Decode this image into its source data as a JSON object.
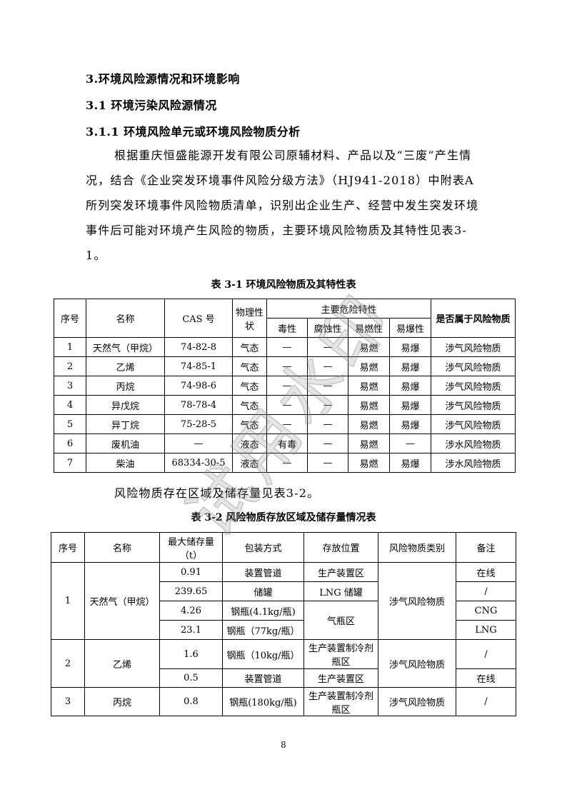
{
  "headings": [
    "3.环境风险源情况和环境影响",
    "3.1 环境污染风险源情况",
    "3.1.1 环境风险单元或环境风险物质分析"
  ],
  "paragraph1": "根据重庆恒盛能源开发有限公司原辅材料、产品以及“三废”产生情况，结合《企业突发环境事件风险分级方法》（HJ941-2018）中附表A所列突发环境事件风险物质清单，识别出企业生产、经营中发生突发环境事件后可能对环境产生风险的物质，主要环境风险物质及其特性见表3-1。",
  "table1": {
    "caption": "表 3-1 环境风险物质及其特性表",
    "headers": {
      "no": "序号",
      "name": "名称",
      "cas": "CAS 号",
      "state": "物理性状",
      "hazard": "主要危险特性",
      "tox": "毒性",
      "corr": "腐蚀性",
      "flam": "易燃性",
      "expl": "易爆性",
      "risk": "是否属于风险物质"
    },
    "rows": [
      [
        "1",
        "天然气（甲烷）",
        "74-82-8",
        "气态",
        "—",
        "—",
        "易燃",
        "易爆",
        "涉气风险物质"
      ],
      [
        "2",
        "乙烯",
        "74-85-1",
        "气态",
        "—",
        "—",
        "易燃",
        "易爆",
        "涉气风险物质"
      ],
      [
        "3",
        "丙烷",
        "74-98-6",
        "气态",
        "—",
        "—",
        "易燃",
        "易爆",
        "涉气风险物质"
      ],
      [
        "4",
        "异戊烷",
        "78-78-4",
        "气态",
        "—",
        "—",
        "易燃",
        "易爆",
        "涉气风险物质"
      ],
      [
        "5",
        "异丁烷",
        "75-28-5",
        "气态",
        "—",
        "—",
        "易燃",
        "易爆",
        "涉气风险物质"
      ],
      [
        "6",
        "废机油",
        "—",
        "液态",
        "有毒",
        "—",
        "易燃",
        "—",
        "涉水风险物质"
      ],
      [
        "7",
        "柴油",
        "68334-30-5",
        "液态",
        "—",
        "—",
        "易燃",
        "易爆",
        "涉水风险物质"
      ]
    ]
  },
  "paragraph2": "风险物质存在区域及储存量见表3-2。",
  "table2": {
    "caption": "表 3-2 风险物质存放区域及储存量情况表",
    "headers": [
      "序号",
      "名称",
      "最大储存量（t）",
      "包装方式",
      "存放位置",
      "风险物质类别",
      "备注"
    ],
    "g1": {
      "no": "1",
      "name": "天然气（甲烷）",
      "cat": "涉气风险物质",
      "rows": [
        {
          "qty": "0.91",
          "pack": "装置管道",
          "loc": "生产装置区",
          "note": "在线"
        },
        {
          "qty": "239.65",
          "pack": "储罐",
          "loc": "LNG 储罐",
          "note": "/"
        },
        {
          "qty": "4.26",
          "pack": "钢瓶(4.1kg/瓶)",
          "loc": "气瓶区",
          "note": "CNG"
        },
        {
          "qty": "23.1",
          "pack": "钢瓶（77kg/瓶）",
          "note": "LNG"
        }
      ]
    },
    "g2": {
      "no": "2",
      "name": "乙烯",
      "cat": "涉气风险物质",
      "rows": [
        {
          "qty": "1.6",
          "pack": "钢瓶（10kg/瓶）",
          "loc": "生产装置制冷剂瓶区",
          "note": "/"
        },
        {
          "qty": "0.5",
          "pack": "装置管道",
          "loc": "生产装置区",
          "note": "在线"
        }
      ]
    },
    "g3": {
      "no": "3",
      "name": "丙烷",
      "qty": "0.8",
      "pack": "钢瓶(180kg/瓶)",
      "loc": "生产装置制冷剂瓶区",
      "cat": "涉气风险物质",
      "note": "/"
    }
  },
  "watermark": "试用水印",
  "page_number": "8"
}
